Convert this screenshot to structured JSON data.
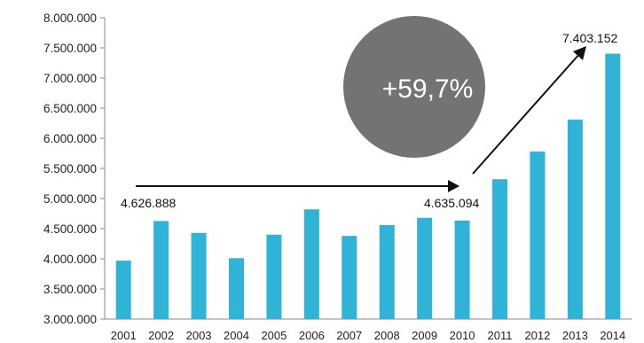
{
  "chart_data": {
    "type": "bar",
    "categories": [
      "2001",
      "2002",
      "2003",
      "2004",
      "2005",
      "2006",
      "2007",
      "2008",
      "2009",
      "2010",
      "2011",
      "2012",
      "2013",
      "2014"
    ],
    "values": [
      3970000,
      4626888,
      4430000,
      4010000,
      4400000,
      4820000,
      4380000,
      4560000,
      4680000,
      4635094,
      5320000,
      5780000,
      6310000,
      7403152
    ],
    "ylim": [
      3000000,
      8000000
    ],
    "yticks": [
      3000000,
      3500000,
      4000000,
      4500000,
      5000000,
      5500000,
      6000000,
      6500000,
      7000000,
      7500000,
      8000000
    ],
    "ytick_labels": [
      "3.000.000",
      "3.500.000",
      "4.000.000",
      "4.500.000",
      "5.000.000",
      "5.500.000",
      "6.000.000",
      "6.500.000",
      "7.000.000",
      "7.500.000",
      "8.000.000"
    ],
    "annotations": {
      "start_label": "4.626.888",
      "mid_label": "4.635.094",
      "end_label": "7.403.152",
      "growth_label": "+59,7%"
    },
    "colors": {
      "bar": "#2fb3d6",
      "bubble": "#737373",
      "arrow": "#111111"
    },
    "grid": false
  }
}
